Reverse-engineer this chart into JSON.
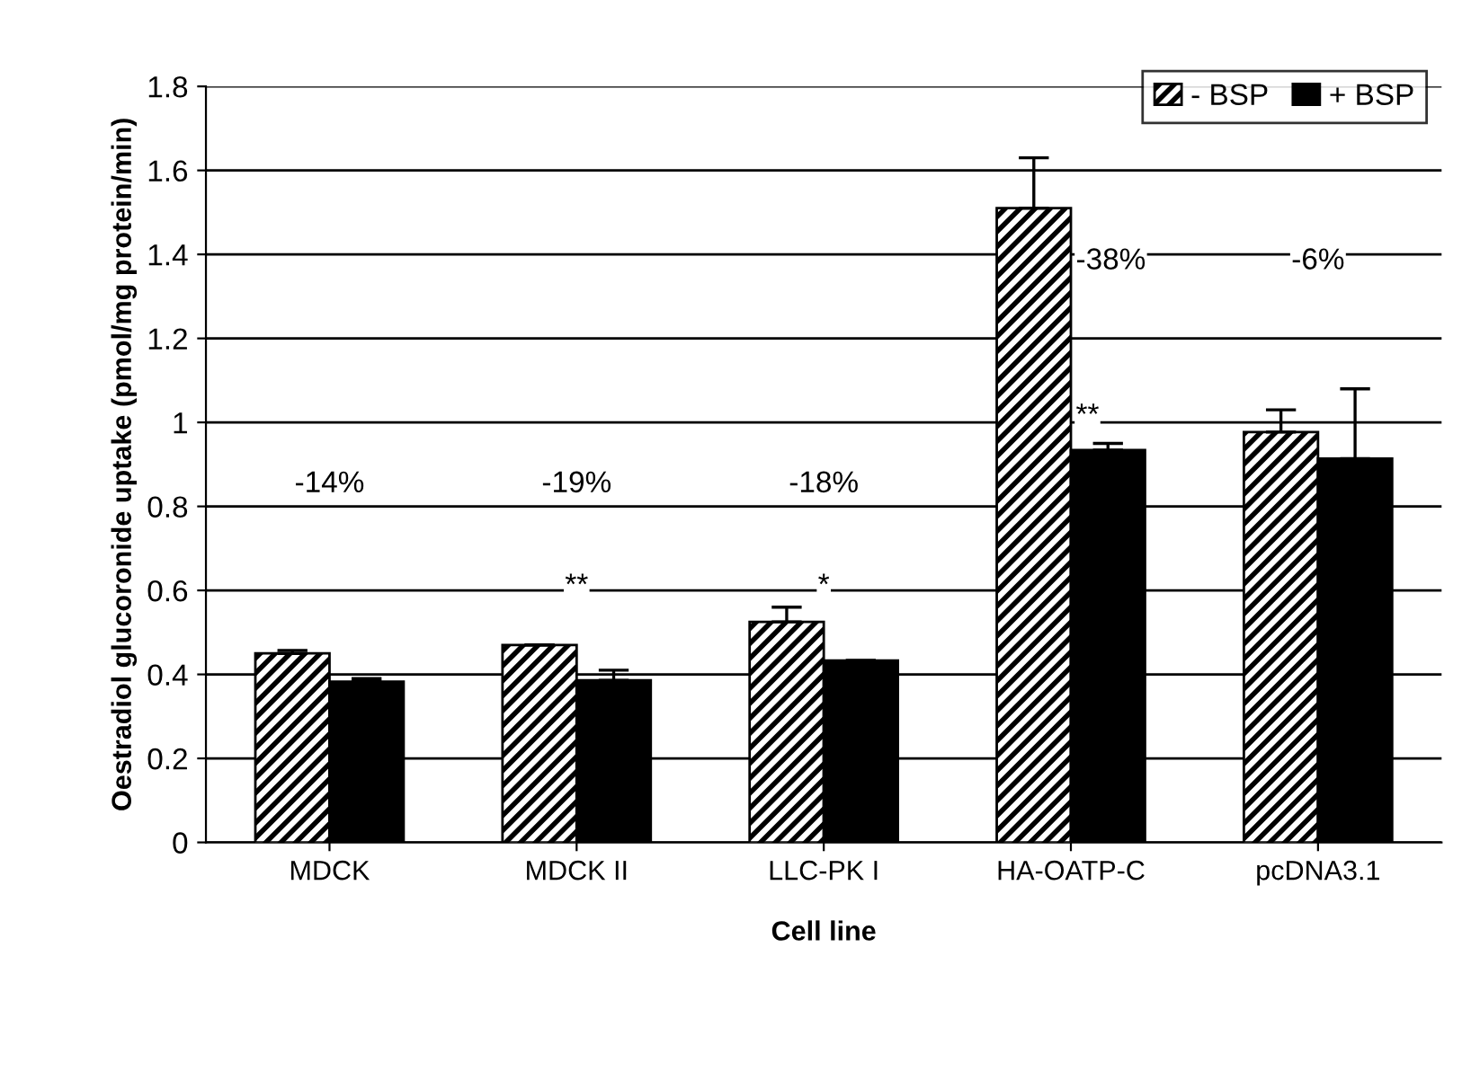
{
  "chart_data": {
    "type": "bar",
    "xlabel": "Cell line",
    "ylabel": "Oestradiol glucoronide uptake (pmol/mg protein/min)",
    "categories": [
      "MDCK",
      "MDCK II",
      "LLC-PK I",
      "HA-OATP-C",
      "pcDNA3.1"
    ],
    "series": [
      {
        "name": "- BSP",
        "color": "#000000",
        "values": [
          0.45,
          0.47,
          0.525,
          1.51,
          0.977
        ],
        "errors": [
          [
            0.45,
            0.457
          ],
          [
            0.47,
            0.47
          ],
          [
            0.525,
            0.56
          ],
          [
            1.51,
            1.63
          ],
          [
            0.977,
            1.03
          ]
        ]
      },
      {
        "name": "+ BSP",
        "color": "#000000",
        "values": [
          0.383,
          0.386,
          0.433,
          0.934,
          0.914
        ],
        "errors": [
          [
            0.383,
            0.39
          ],
          [
            0.386,
            0.41
          ],
          [
            0.433,
            0.433
          ],
          [
            0.934,
            0.95
          ],
          [
            0.914,
            1.08
          ]
        ]
      }
    ],
    "ylim": [
      0,
      1.8
    ],
    "yticks": [
      0,
      0.2,
      0.4,
      0.6,
      0.8,
      1,
      1.2,
      1.4,
      1.6,
      1.8
    ],
    "grid": "y",
    "legend": "top right",
    "annotations": [
      "-14%",
      "-19%",
      "-18%",
      "-38%",
      "-6%",
      "**",
      "*",
      "**"
    ]
  }
}
